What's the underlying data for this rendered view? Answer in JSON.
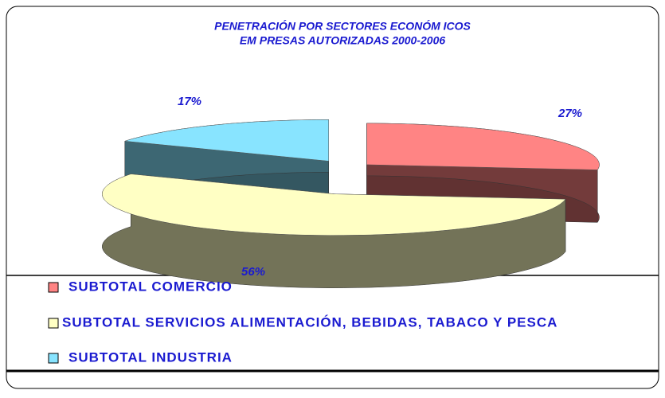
{
  "chart_data": {
    "type": "pie",
    "title": "PENETRACIÓN POR SECTORES ECONÓM ICOS",
    "subtitle": "EM PRESAS AUTORIZADAS 2000-2006",
    "categories": [
      "SUBTOTAL COMERCIO",
      "SUBTOTAL SERVICIOS ALIMENTACIÓN, BEBIDAS, TABACO Y PESCA",
      "SUBTOTAL INDUSTRIA"
    ],
    "values": [
      27,
      56,
      17
    ],
    "value_labels": [
      "27%",
      "56%",
      "17%"
    ],
    "colors": [
      "#ff8484",
      "#ffffc4",
      "#88e4ff"
    ],
    "legend": "bottom"
  }
}
